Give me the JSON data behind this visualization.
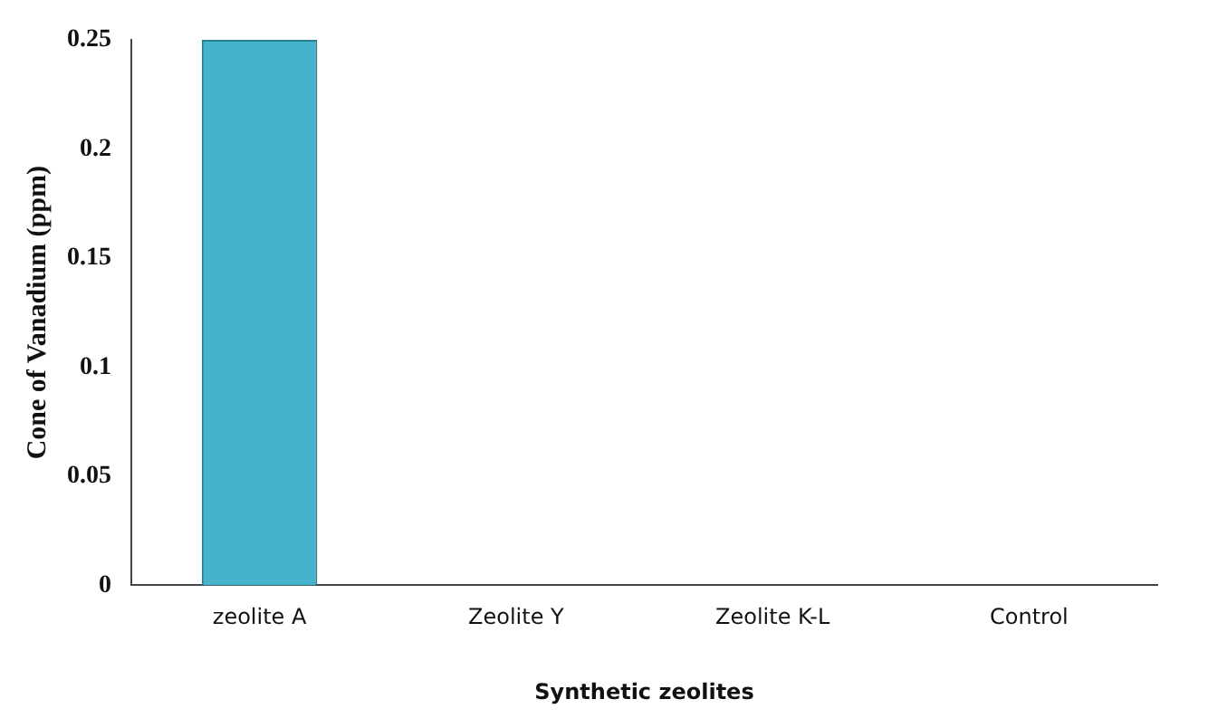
{
  "chart_data": {
    "type": "bar",
    "xlabel": "Synthetic zeolites",
    "ylabel": "Cone of Vanadium (ppm)",
    "categories": [
      "zeolite A",
      "Zeolite Y",
      "Zeolite K-L",
      "Control"
    ],
    "values": [
      0.25,
      0,
      0,
      0
    ],
    "color": "#46b3cc",
    "ylim": [
      0,
      0.25
    ],
    "yticks": [
      0,
      0.05,
      0.1,
      0.15,
      0.2,
      0.25
    ],
    "grid": false,
    "legend": false
  }
}
